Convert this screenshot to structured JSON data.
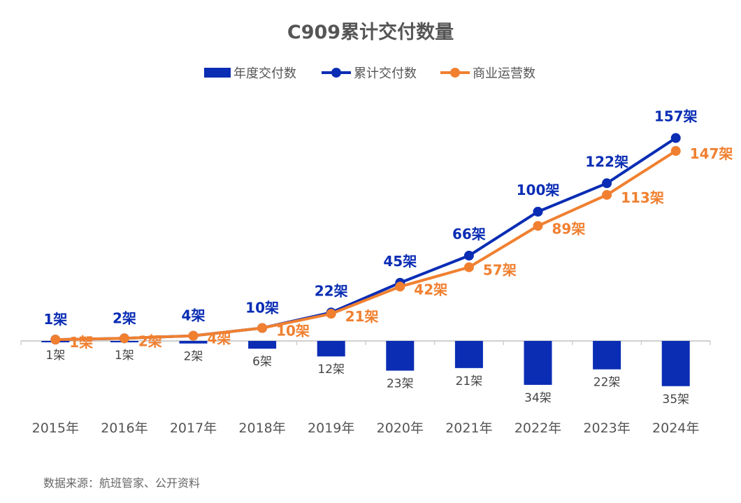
{
  "chart_data": {
    "type": "bar+line",
    "title": "C909累计交付数量",
    "categories": [
      "2015年",
      "2016年",
      "2017年",
      "2018年",
      "2019年",
      "2020年",
      "2021年",
      "2022年",
      "2023年",
      "2024年"
    ],
    "unit_suffix": "架",
    "series": [
      {
        "name": "年度交付数",
        "type": "bar",
        "color": "#0A2DB4",
        "values": [
          1,
          1,
          2,
          6,
          12,
          23,
          21,
          34,
          22,
          35
        ]
      },
      {
        "name": "累计交付数",
        "type": "line",
        "color": "#0A2DB4",
        "values": [
          1,
          2,
          4,
          10,
          22,
          45,
          66,
          100,
          122,
          157
        ]
      },
      {
        "name": "商业运营数",
        "type": "line",
        "color": "#F08030",
        "values": [
          1,
          2,
          4,
          10,
          21,
          42,
          57,
          89,
          113,
          147
        ]
      }
    ],
    "bars_direction": "downward",
    "legend_position": "top",
    "grid": false
  },
  "source": "数据来源：航班管家、公开资料"
}
